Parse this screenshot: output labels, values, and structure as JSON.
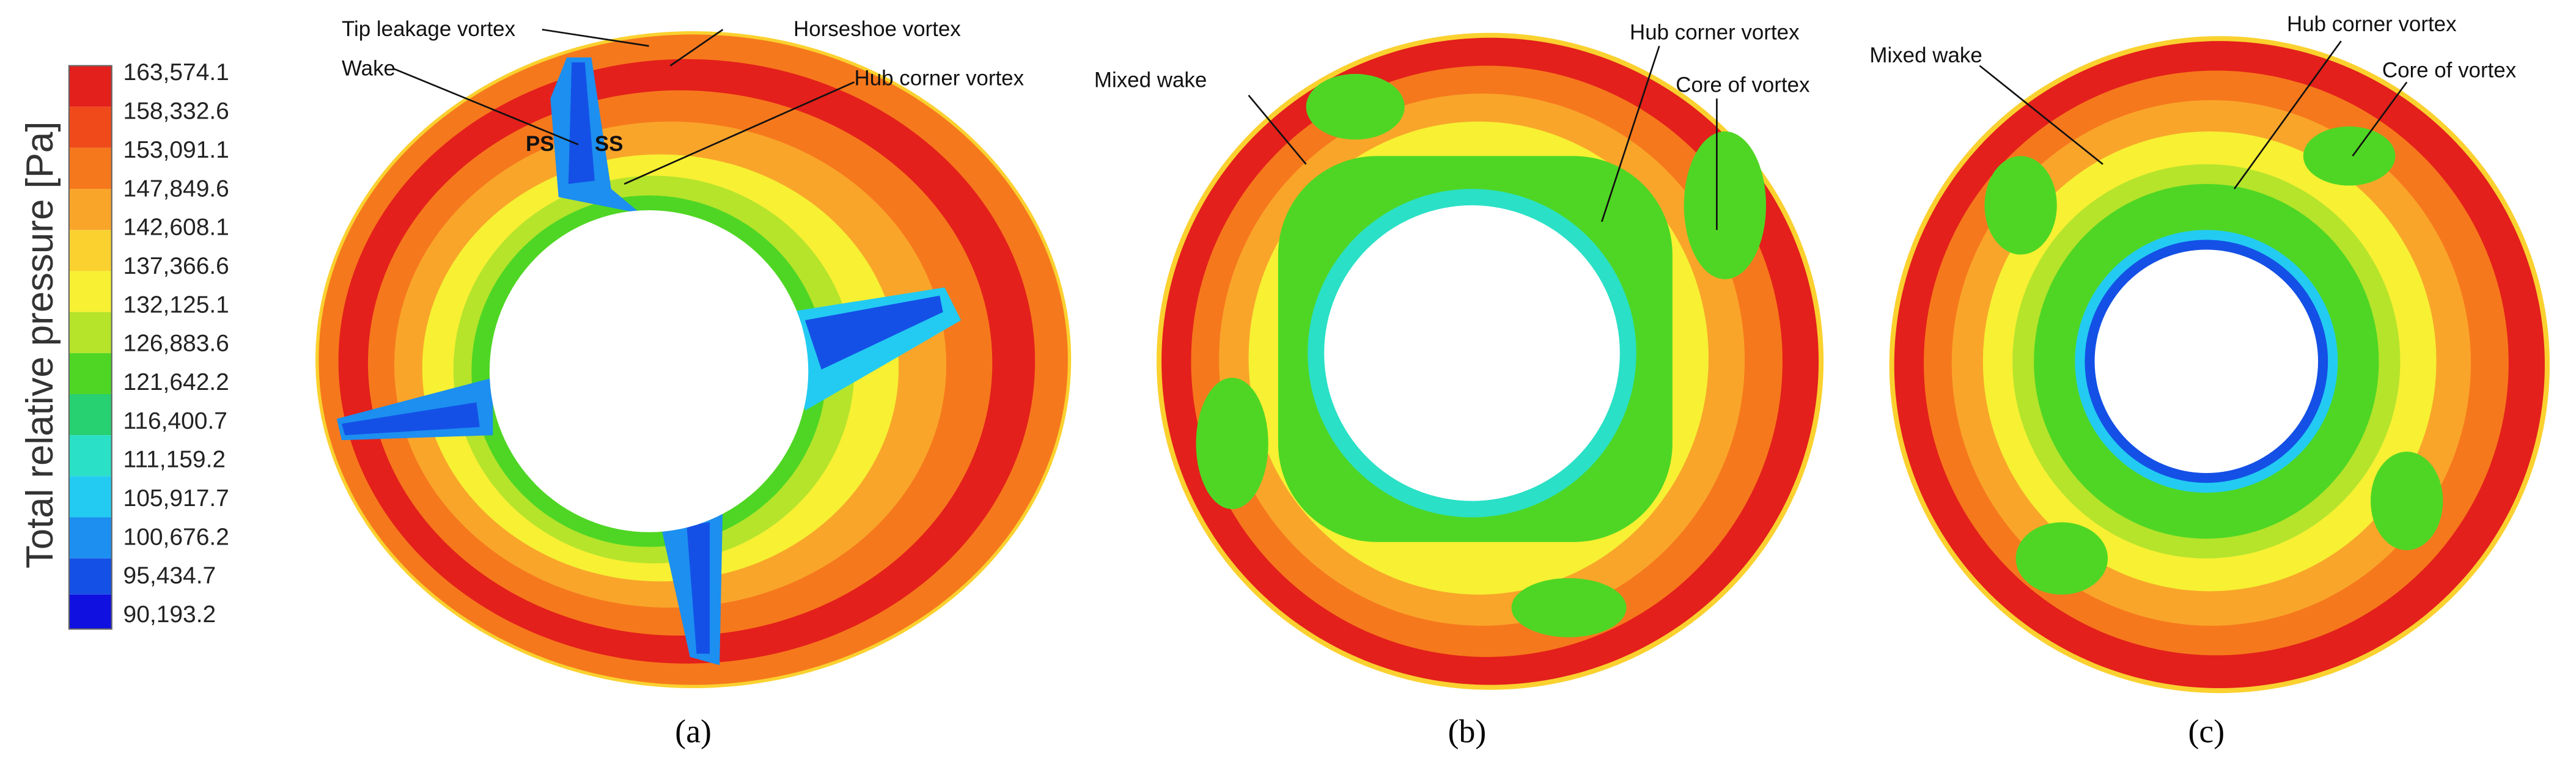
{
  "colorbar": {
    "title": "Total relative pressure [Pa]",
    "labels": [
      "163,574.1",
      "158,332.6",
      "153,091.1",
      "147,849.6",
      "142,608.1",
      "137,366.6",
      "132,125.1",
      "126,883.6",
      "121,642.2",
      "116,400.7",
      "111,159.2",
      "105,917.7",
      "100,676.2",
      "95,434.7",
      "90,193.2"
    ]
  },
  "panels": [
    {
      "caption": "(a)",
      "annotations": [
        "Tip leakage vortex",
        "Horseshoe vortex",
        "Wake",
        "Hub corner vortex",
        "PS",
        "SS"
      ]
    },
    {
      "caption": "(b)",
      "annotations": [
        "Mixed wake",
        "Hub corner vortex",
        "Core of vortex"
      ]
    },
    {
      "caption": "(c)",
      "annotations": [
        "Mixed wake",
        "Hub corner vortex",
        "Core of vortex"
      ]
    }
  ]
}
